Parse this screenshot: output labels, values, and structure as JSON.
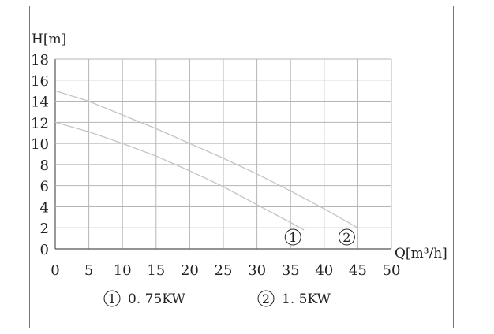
{
  "chart_data": {
    "type": "line",
    "xlabel": "Q[m³/h]",
    "ylabel": "H[m]",
    "xlim": [
      0,
      50
    ],
    "ylim": [
      0,
      18
    ],
    "xticks": [
      0,
      5,
      10,
      15,
      20,
      25,
      30,
      35,
      40,
      45,
      50
    ],
    "yticks": [
      0,
      2,
      4,
      6,
      8,
      10,
      12,
      14,
      16,
      18
    ],
    "grid": true,
    "legend_position": "bottom",
    "line_color": "#c4c4c4",
    "series": [
      {
        "name": "0.75KW",
        "marker": "①",
        "x": [
          0,
          5,
          10,
          15,
          20,
          25,
          30,
          35,
          37
        ],
        "y": [
          12,
          11.1,
          10,
          8.8,
          7.4,
          5.9,
          4.2,
          2.5,
          1.8
        ]
      },
      {
        "name": "1.5KW",
        "marker": "②",
        "x": [
          0,
          5,
          10,
          15,
          20,
          25,
          30,
          35,
          40,
          45
        ],
        "y": [
          15,
          14,
          12.7,
          11.4,
          10,
          8.6,
          7.1,
          5.5,
          3.8,
          2
        ]
      }
    ]
  }
}
